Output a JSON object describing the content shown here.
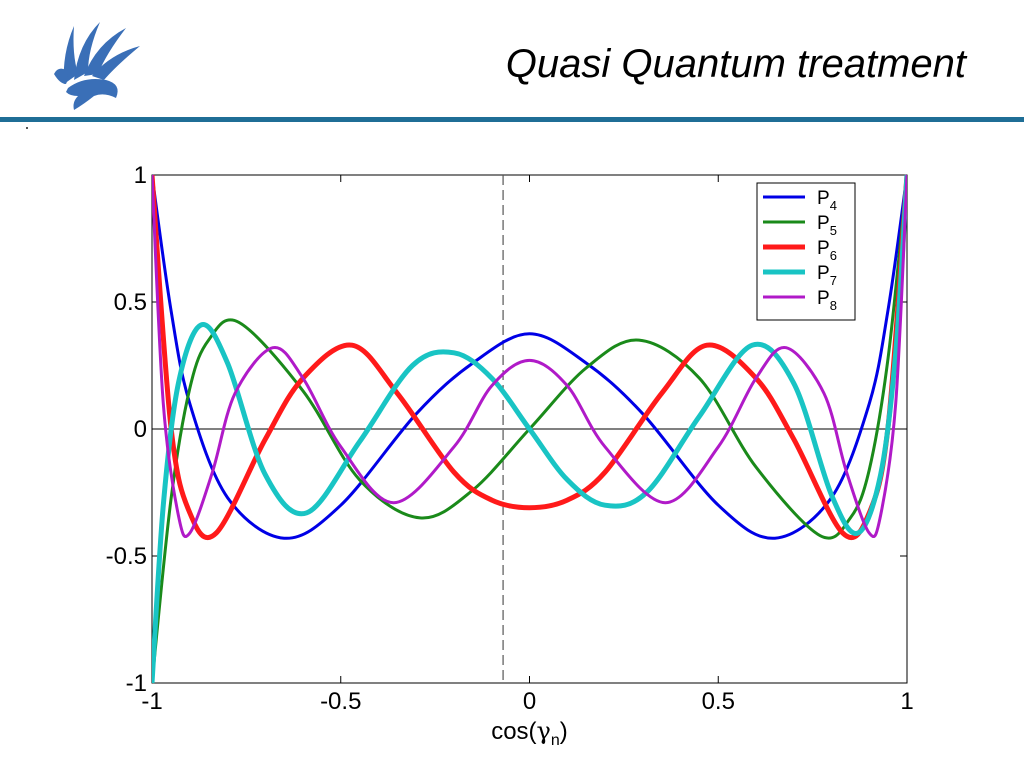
{
  "slide": {
    "title": "Quasi Quantum treatment",
    "accent_color": "#1F6E96",
    "logo_icon": "griffin-logo-icon",
    "logo_color": "#3A6FB7"
  },
  "chart_data": {
    "type": "line",
    "xlabel": "cos(γn)",
    "xlabel_parts": {
      "base": "cos(",
      "greek": "γ",
      "sub": "n",
      "close": ")"
    },
    "ylabel": "",
    "xlim": [
      -1,
      1
    ],
    "ylim": [
      -1,
      1
    ],
    "xticks": [
      -1,
      -0.5,
      0,
      0.5,
      1
    ],
    "xtick_labels": [
      "-1",
      "-0.5",
      "0",
      "0.5",
      "1"
    ],
    "yticks": [
      -1,
      -0.5,
      0,
      0.5,
      1
    ],
    "ytick_labels": [
      "-1",
      "-0.5",
      "0",
      "0.5",
      "1"
    ],
    "grid": false,
    "zero_line_y": 0,
    "reference_line_x": -0.07,
    "legend_position": "top-right",
    "series": [
      {
        "name": "P4",
        "label_base": "P",
        "label_sub": "4",
        "color": "#0000E6",
        "weight": "thin",
        "x": [
          -1,
          -0.95,
          -0.9,
          -0.8,
          -0.65,
          -0.5,
          -0.3,
          -0.15,
          0,
          0.15,
          0.3,
          0.5,
          0.65,
          0.8,
          0.9,
          0.95,
          1
        ],
        "y": [
          1,
          0.47,
          0.1,
          -0.27,
          -0.43,
          -0.3,
          0.06,
          0.26,
          0.375,
          0.26,
          0.06,
          -0.3,
          -0.43,
          -0.27,
          0.1,
          0.47,
          1
        ]
      },
      {
        "name": "P5",
        "label_base": "P",
        "label_sub": "5",
        "color": "#1A8A1A",
        "weight": "thin",
        "x": [
          -1,
          -0.95,
          -0.9,
          -0.85,
          -0.77,
          -0.6,
          -0.45,
          -0.29,
          -0.15,
          0,
          0.15,
          0.29,
          0.45,
          0.6,
          0.77,
          0.85,
          0.9,
          0.95,
          1
        ],
        "y": [
          -1,
          -0.28,
          0.16,
          0.35,
          0.42,
          0.15,
          -0.2,
          -0.35,
          -0.24,
          0,
          0.24,
          0.35,
          0.2,
          -0.15,
          -0.42,
          -0.35,
          -0.16,
          0.28,
          1
        ]
      },
      {
        "name": "P6",
        "label_base": "P",
        "label_sub": "6",
        "color": "#FF1A1A",
        "weight": "thick",
        "x": [
          -1,
          -0.95,
          -0.9,
          -0.83,
          -0.7,
          -0.6,
          -0.47,
          -0.35,
          -0.2,
          -0.1,
          0,
          0.1,
          0.2,
          0.35,
          0.47,
          0.6,
          0.7,
          0.83,
          0.9,
          0.95,
          1
        ],
        "y": [
          1,
          0.01,
          -0.33,
          -0.41,
          -0.04,
          0.2,
          0.33,
          0.14,
          -0.17,
          -0.28,
          -0.31,
          -0.28,
          -0.17,
          0.14,
          0.33,
          0.2,
          -0.04,
          -0.41,
          -0.33,
          0.01,
          1
        ]
      },
      {
        "name": "P7",
        "label_base": "P",
        "label_sub": "7",
        "color": "#19C4C4",
        "weight": "thick",
        "x": [
          -1,
          -0.97,
          -0.93,
          -0.87,
          -0.8,
          -0.7,
          -0.59,
          -0.45,
          -0.31,
          -0.2,
          -0.1,
          0,
          0.1,
          0.2,
          0.31,
          0.45,
          0.59,
          0.7,
          0.8,
          0.87,
          0.93,
          0.97,
          1
        ],
        "y": [
          -1,
          -0.3,
          0.18,
          0.41,
          0.26,
          -0.18,
          -0.33,
          -0.05,
          0.25,
          0.3,
          0.2,
          0,
          -0.2,
          -0.3,
          -0.25,
          0.05,
          0.33,
          0.18,
          -0.26,
          -0.41,
          -0.18,
          0.3,
          1
        ]
      },
      {
        "name": "P8",
        "label_base": "P",
        "label_sub": "8",
        "color": "#B01AC8",
        "weight": "thin",
        "x": [
          -1,
          -0.97,
          -0.93,
          -0.9,
          -0.84,
          -0.78,
          -0.68,
          -0.6,
          -0.5,
          -0.36,
          -0.2,
          -0.1,
          0,
          0.1,
          0.2,
          0.36,
          0.5,
          0.6,
          0.68,
          0.78,
          0.84,
          0.9,
          0.93,
          0.97,
          1
        ],
        "y": [
          1,
          0.1,
          -0.34,
          -0.41,
          -0.17,
          0.14,
          0.32,
          0.2,
          -0.07,
          -0.29,
          -0.07,
          0.17,
          0.27,
          0.17,
          -0.07,
          -0.29,
          -0.07,
          0.2,
          0.32,
          0.14,
          -0.17,
          -0.41,
          -0.34,
          0.1,
          1
        ]
      }
    ]
  }
}
